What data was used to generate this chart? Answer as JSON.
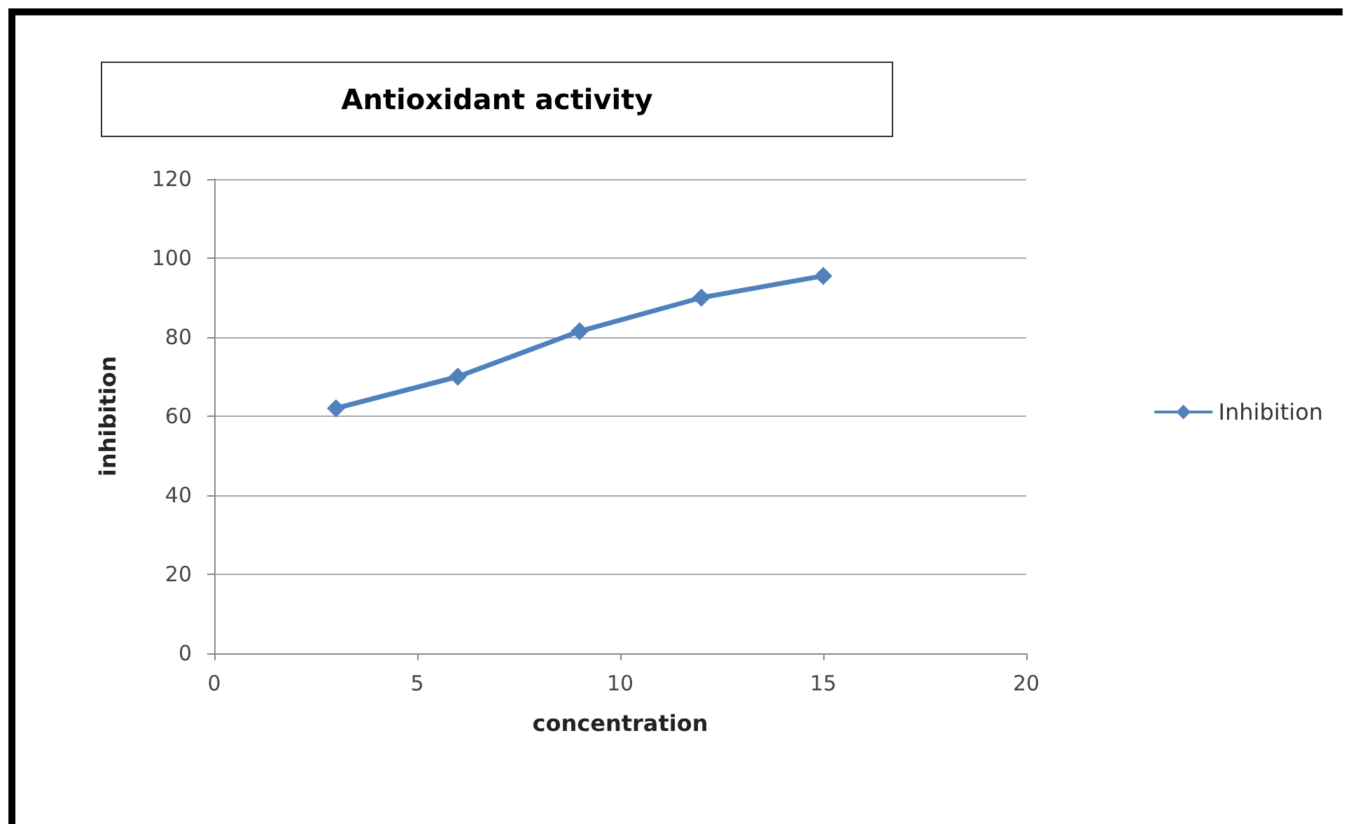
{
  "chart_data": {
    "type": "line",
    "title": "Antioxidant activity",
    "xlabel": "concentration",
    "ylabel": "inhibition",
    "x": [
      3,
      6,
      9,
      12,
      15
    ],
    "series": [
      {
        "name": "Inhibition",
        "color": "#4f81bd",
        "values": [
          62,
          70,
          81.5,
          90,
          95.5
        ]
      }
    ],
    "xlim": [
      0,
      20
    ],
    "xticks": [
      0,
      5,
      10,
      15,
      20
    ],
    "ylim": [
      0,
      120
    ],
    "yticks": [
      0,
      20,
      40,
      60,
      80,
      100,
      120
    ],
    "grid": "y",
    "legend": "right",
    "marker": "diamond",
    "line_style": "solid"
  }
}
